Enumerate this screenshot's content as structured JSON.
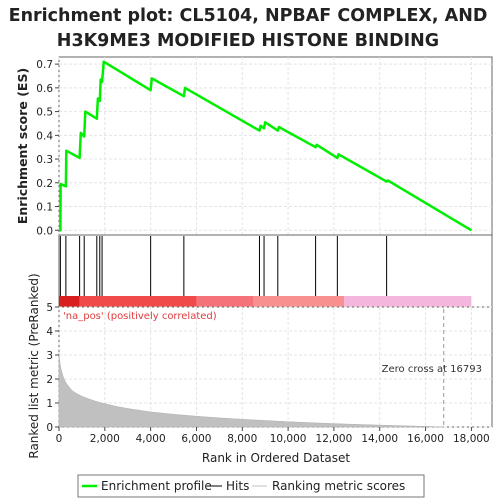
{
  "title_line1": "Enrichment plot: CL5104, NPBAF COMPLEX, AND",
  "title_line2": "H3K9ME3 MODIFIED HISTONE BINDING",
  "chart_data": [
    {
      "type": "line",
      "name": "enrichment-profile-panel",
      "ylabel": "Enrichment score (ES)",
      "xlim": [
        0,
        18900
      ],
      "ylim": [
        -0.02,
        0.73
      ],
      "yticks": [
        0.0,
        0.1,
        0.2,
        0.3,
        0.4,
        0.5,
        0.6,
        0.7
      ],
      "ytick_labels": [
        "0.0",
        "0.1",
        "0.2",
        "0.3",
        "0.4",
        "0.5",
        "0.6",
        "0.7"
      ],
      "grid": true,
      "series": [
        {
          "name": "Enrichment profile",
          "color": "#00ee00",
          "x": [
            0,
            60,
            70,
            300,
            320,
            900,
            950,
            1100,
            1150,
            1650,
            1700,
            1780,
            1820,
            1880,
            1950,
            4000,
            4050,
            5450,
            5500,
            8750,
            8800,
            8950,
            9000,
            9550,
            9600,
            11200,
            11250,
            12150,
            12200,
            14300,
            14350,
            18000
          ],
          "y": [
            0.0,
            0.0,
            0.195,
            0.185,
            0.335,
            0.305,
            0.41,
            0.395,
            0.5,
            0.47,
            0.555,
            0.545,
            0.635,
            0.625,
            0.71,
            0.59,
            0.64,
            0.565,
            0.6,
            0.42,
            0.44,
            0.43,
            0.455,
            0.42,
            0.435,
            0.35,
            0.36,
            0.305,
            0.32,
            0.205,
            0.21,
            0.0
          ]
        }
      ]
    },
    {
      "type": "hits",
      "name": "hits-panel",
      "xlim": [
        0,
        18900
      ],
      "hit_positions": [
        60,
        300,
        900,
        1100,
        1650,
        1780,
        1880,
        4000,
        5450,
        8750,
        8950,
        9550,
        11200,
        12150,
        14300
      ],
      "hit_color": "#000000",
      "gradient_segments": [
        {
          "start": 0,
          "end": 900,
          "color": "#d91f1f"
        },
        {
          "start": 900,
          "end": 6000,
          "color": "#f04a4a"
        },
        {
          "start": 6000,
          "end": 8500,
          "color": "#f5727a"
        },
        {
          "start": 8500,
          "end": 12450,
          "color": "#f89090"
        },
        {
          "start": 12450,
          "end": 18000,
          "color": "#f4b6dc"
        }
      ]
    },
    {
      "type": "area",
      "name": "ranked-metric-panel",
      "ylabel": "Ranked list metric (PreRanked)",
      "xlabel": "Rank in Ordered Dataset",
      "xlim": [
        0,
        18900
      ],
      "ylim": [
        0,
        5
      ],
      "xticks": [
        0,
        2000,
        4000,
        6000,
        8000,
        10000,
        12000,
        14000,
        16000,
        18000
      ],
      "xtick_labels": [
        "0",
        "2,000",
        "4,000",
        "6,000",
        "8,000",
        "10,000",
        "12,000",
        "14,000",
        "16,000",
        "18,000"
      ],
      "yticks": [
        0,
        1,
        2,
        3,
        4,
        5
      ],
      "ytick_labels": [
        "0",
        "1",
        "2",
        "3",
        "4",
        "5"
      ],
      "grid": true,
      "fill_color": "#c0c0c0",
      "x": [
        0,
        20,
        60,
        120,
        200,
        300,
        450,
        600,
        800,
        1000,
        1300,
        1600,
        2000,
        2500,
        3000,
        3500,
        4000,
        5000,
        6000,
        7000,
        8000,
        9000,
        10000,
        11000,
        12000,
        13000,
        14000,
        15000,
        16000,
        16793
      ],
      "values": [
        3.1,
        2.85,
        2.55,
        2.3,
        2.05,
        1.85,
        1.65,
        1.5,
        1.38,
        1.28,
        1.17,
        1.07,
        0.97,
        0.86,
        0.77,
        0.7,
        0.63,
        0.53,
        0.45,
        0.38,
        0.32,
        0.27,
        0.22,
        0.18,
        0.14,
        0.11,
        0.08,
        0.05,
        0.025,
        0.0
      ],
      "zero_cross": 16793,
      "zero_cross_label": "Zero cross at 16793",
      "pos_label": "'na_pos' (positively correlated)"
    }
  ],
  "legend": {
    "placement": "bottom",
    "items": [
      {
        "label": "Enrichment profile",
        "color": "#00ee00",
        "style": "thick-line"
      },
      {
        "label": "Hits",
        "color": "#000000",
        "style": "line"
      },
      {
        "label": "Ranking metric scores",
        "color": "#c0c0c0",
        "style": "line"
      }
    ]
  }
}
